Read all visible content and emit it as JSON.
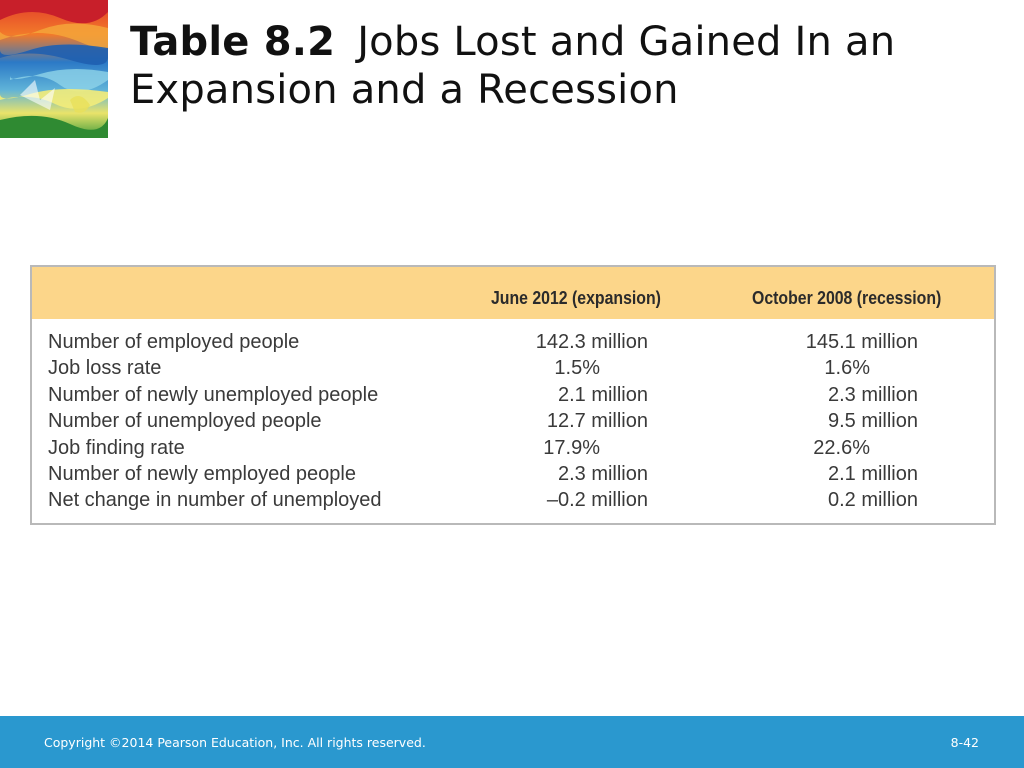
{
  "title": {
    "label": "Table 8.2",
    "text_line1": "Jobs Lost and Gained In an",
    "text_line2": "Expansion and a Recession"
  },
  "table": {
    "headers": [
      "June 2012 (expansion)",
      "October 2008 (recession)"
    ],
    "rows": [
      {
        "label": "Number of employed people",
        "v1": "142.3 million",
        "v2": "145.1 million",
        "pct": false
      },
      {
        "label": "Job loss rate",
        "v1": "1.5%",
        "v2": "1.6%",
        "pct": true
      },
      {
        "label": "Number of newly unemployed people",
        "v1": "2.1 million",
        "v2": "2.3 million",
        "pct": false
      },
      {
        "label": "Number of unemployed people",
        "v1": "12.7 million",
        "v2": "9.5 million",
        "pct": false
      },
      {
        "label": "Job finding rate",
        "v1": "17.9%",
        "v2": "22.6%",
        "pct": true
      },
      {
        "label": "Number of newly employed people",
        "v1": "2.3 million",
        "v2": "2.1 million",
        "pct": false
      },
      {
        "label": "Net change in number of unemployed",
        "v1": "–0.2 million",
        "v2": "0.2 million",
        "pct": false
      }
    ]
  },
  "footer": {
    "copyright": "Copyright ©2014 Pearson Education, Inc. All rights reserved.",
    "page": "8-42"
  },
  "colors": {
    "header_fill": "#fcd68a",
    "footer_fill": "#2a98cf",
    "table_border": "#b9b9b9"
  },
  "icons": {
    "logo": "abstract-painting-logo"
  }
}
